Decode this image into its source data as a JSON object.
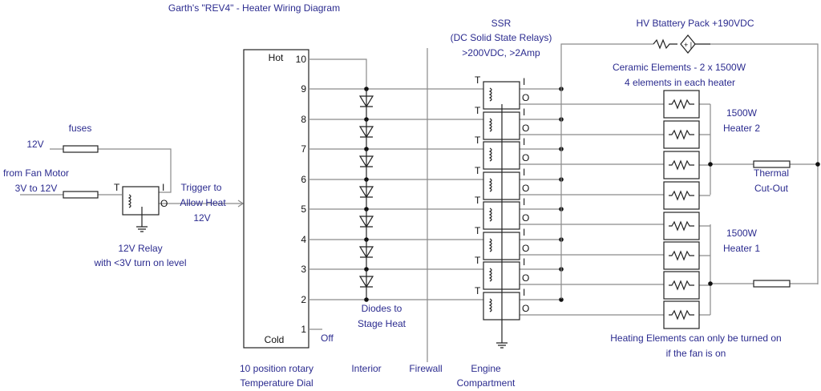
{
  "title": "Garth's \"REV4\" - Heater Wiring Diagram",
  "relay_section": {
    "fuses_label": "fuses",
    "supply_label": "12V",
    "fan_label_1": "from Fan Motor",
    "fan_label_2": "3V to 12V",
    "relay_label_1": "12V Relay",
    "relay_label_2": "with <3V turn on level",
    "trigger_label_1": "Trigger to",
    "trigger_label_2": "Allow Heat",
    "trigger_label_3": "12V",
    "pin_t": "T",
    "pin_i": "I",
    "pin_o": "O"
  },
  "dial": {
    "hot": "Hot",
    "cold": "Cold",
    "off": "Off",
    "positions": [
      "10",
      "9",
      "8",
      "7",
      "6",
      "5",
      "4",
      "3",
      "2",
      "1"
    ],
    "caption_1": "10 position rotary",
    "caption_2": "Temperature Dial"
  },
  "diodes": {
    "label_1": "Diodes to",
    "label_2": "Stage Heat"
  },
  "zones": {
    "interior": "Interior",
    "firewall": "Firewall",
    "engine_1": "Engine",
    "engine_2": "Compartment"
  },
  "ssr": {
    "title": "SSR",
    "subtitle": "(DC Solid State Relays)",
    "rating": ">200VDC, >2Amp",
    "pin_t": "T",
    "pin_i": "I",
    "pin_o": "O"
  },
  "battery": {
    "label": "HV Btattery Pack +190VDC",
    "symbol": "+ |"
  },
  "elements": {
    "label_1": "Ceramic Elements - 2 x 1500W",
    "label_2": "4 elements in each heater",
    "heater2_1": "1500W",
    "heater2_2": "Heater 2",
    "heater1_1": "1500W",
    "heater1_2": "Heater 1",
    "thermal_1": "Thermal",
    "thermal_2": "Cut-Out",
    "note_1": "Heating Elements can only be turned on",
    "note_2": "if the fan is on"
  },
  "colors": {
    "text": "#2b2b8f",
    "wire": "#8a8a8a",
    "component": "#222222"
  }
}
